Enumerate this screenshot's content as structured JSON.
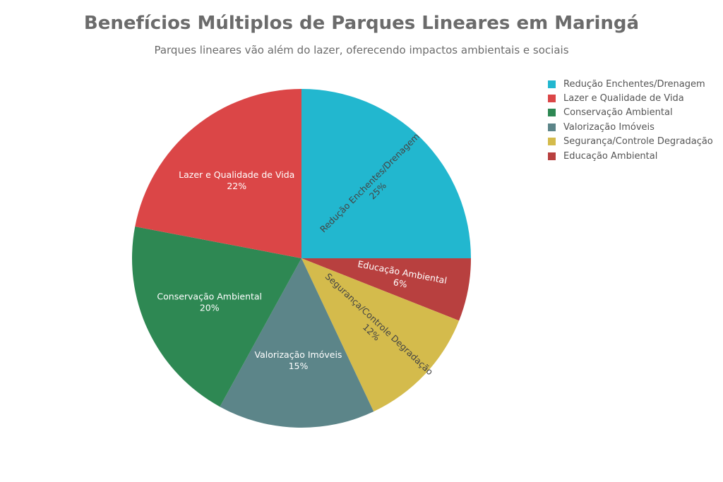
{
  "chart_data": {
    "type": "pie",
    "title": "Benefícios Múltiplos de Parques Lineares em Maringá",
    "subtitle": "Parques lineares vão além do lazer, oferecendo impactos ambientais e sociais",
    "slices": [
      {
        "label": "Redução Enchentes/Drenagem",
        "value": 25,
        "percent_label": "25%",
        "color": "#22b7cf",
        "text_color": "#444444",
        "label_style": "radial"
      },
      {
        "label": "Educação Ambiental",
        "value": 6,
        "percent_label": "6%",
        "color": "#b8403f",
        "text_color": "#ffffff",
        "label_style": "radial"
      },
      {
        "label": "Segurança/Controle Degradação",
        "value": 12,
        "percent_label": "12%",
        "color": "#d4bb4c",
        "text_color": "#444444",
        "label_style": "radial"
      },
      {
        "label": "Valorização Imóveis",
        "value": 15,
        "percent_label": "15%",
        "color": "#5c8589",
        "text_color": "#ffffff",
        "label_style": "horizontal"
      },
      {
        "label": "Conservação Ambiental",
        "value": 20,
        "percent_label": "20%",
        "color": "#2e8853",
        "text_color": "#ffffff",
        "label_style": "horizontal"
      },
      {
        "label": "Lazer e Qualidade de Vida",
        "value": 22,
        "percent_label": "22%",
        "color": "#db4647",
        "text_color": "#ffffff",
        "label_style": "horizontal"
      }
    ],
    "legend_order": [
      "Redução Enchentes/Drenagem",
      "Lazer e Qualidade de Vida",
      "Conservação Ambiental",
      "Valorização Imóveis",
      "Segurança/Controle Degradação",
      "Educação Ambiental"
    ],
    "start_angle": "12 o'clock",
    "direction": "clockwise",
    "legend_position": "top-right"
  }
}
